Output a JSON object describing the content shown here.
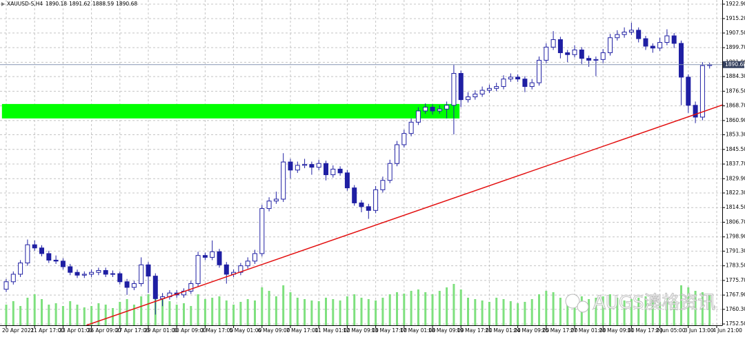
{
  "chart_data": {
    "type": "candlestick",
    "symbol": "XAUUSD-S,H4",
    "up_color": "#ffffff",
    "down_color": "#1f1fa3",
    "outline_color": "#1f1fa3",
    "volume_color": "#7ee07e",
    "grid": true,
    "ylim": [
      1751.8,
      1925.1
    ],
    "yticks": [
      {
        "value": 1922.9,
        "label": "1922.90"
      },
      {
        "value": 1915.2,
        "label": "1915.20"
      },
      {
        "value": 1907.5,
        "label": "1907.50"
      },
      {
        "value": 1899.7,
        "label": "1899.70"
      },
      {
        "value": 1891.9,
        "label": "1891.90"
      },
      {
        "value": 1884.3,
        "label": "1884.30"
      },
      {
        "value": 1876.5,
        "label": "1876.50"
      },
      {
        "value": 1868.7,
        "label": "1868.70"
      },
      {
        "value": 1860.9,
        "label": "1860.90"
      },
      {
        "value": 1853.3,
        "label": "1853.30"
      },
      {
        "value": 1845.5,
        "label": "1845.50"
      },
      {
        "value": 1837.7,
        "label": "1837.70"
      },
      {
        "value": 1829.9,
        "label": "1829.90"
      },
      {
        "value": 1822.3,
        "label": "1822.30"
      },
      {
        "value": 1814.5,
        "label": "1814.50"
      },
      {
        "value": 1806.7,
        "label": "1806.70"
      },
      {
        "value": 1798.9,
        "label": "1798.90"
      },
      {
        "value": 1791.3,
        "label": "1791.30"
      },
      {
        "value": 1783.5,
        "label": "1783.50"
      },
      {
        "value": 1775.7,
        "label": "1775.70"
      },
      {
        "value": 1767.9,
        "label": "1767.90"
      },
      {
        "value": 1760.3,
        "label": "1760.30"
      },
      {
        "value": 1752.5,
        "label": "1752.50"
      }
    ],
    "xlabels": [
      "20 Apr 2021",
      "21 Apr 17:00",
      "23 Apr 01:00",
      "26 Apr 09:00",
      "27 Apr 17:00",
      "29 Apr 01:00",
      "30 Apr 09:00",
      "3 May 17:00",
      "5 May 01:00",
      "6 May 09:00",
      "7 May 17:00",
      "11 May 01:00",
      "12 May 09:00",
      "13 May 17:00",
      "17 May 01:00",
      "18 May 09:00",
      "19 May 17:00",
      "21 May 01:00",
      "24 May 09:00",
      "25 May 17:00",
      "27 May 01:00",
      "28 May 09:00",
      "31 May 17:00",
      "2 Jun 05:00",
      "3 Jun 13:00",
      "4 Jun 21:00"
    ],
    "candles": [
      [
        1771,
        1776.5,
        1769.5,
        1775
      ],
      [
        1775,
        1780.5,
        1773.5,
        1779
      ],
      [
        1779,
        1786.5,
        1777.5,
        1785
      ],
      [
        1785,
        1797.5,
        1783.5,
        1794.7
      ],
      [
        1794.7,
        1797,
        1791.5,
        1793
      ],
      [
        1793,
        1794.5,
        1788.5,
        1790
      ],
      [
        1790,
        1791.5,
        1785,
        1786.5
      ],
      [
        1786.5,
        1789,
        1784.5,
        1786
      ],
      [
        1786,
        1787.5,
        1781.5,
        1783
      ],
      [
        1783,
        1784.5,
        1778.5,
        1780
      ],
      [
        1780,
        1781.5,
        1777,
        1778.5
      ],
      [
        1778.5,
        1780.5,
        1777,
        1779
      ],
      [
        1779,
        1781.5,
        1777.5,
        1780
      ],
      [
        1780,
        1782.5,
        1778.5,
        1781
      ],
      [
        1781,
        1782.5,
        1777.5,
        1779
      ],
      [
        1779,
        1781,
        1777.5,
        1779.3
      ],
      [
        1779.3,
        1780.5,
        1773.5,
        1775
      ],
      [
        1775,
        1776.5,
        1768,
        1772
      ],
      [
        1772,
        1775.5,
        1770.5,
        1774
      ],
      [
        1774,
        1788,
        1772.5,
        1784
      ],
      [
        1784,
        1785.5,
        1769,
        1778
      ],
      [
        1778,
        1779.5,
        1757.5,
        1766
      ],
      [
        1766,
        1769,
        1762,
        1767
      ],
      [
        1767,
        1770.5,
        1765.5,
        1769
      ],
      [
        1769,
        1770.5,
        1766.5,
        1768
      ],
      [
        1768,
        1771.5,
        1766.5,
        1770
      ],
      [
        1770,
        1775.5,
        1768.5,
        1774
      ],
      [
        1774,
        1791,
        1772.5,
        1789
      ],
      [
        1789,
        1790.5,
        1786.5,
        1788
      ],
      [
        1788,
        1797,
        1786.5,
        1791
      ],
      [
        1791,
        1792.5,
        1782.5,
        1784
      ],
      [
        1784,
        1785.5,
        1774,
        1779
      ],
      [
        1779,
        1781.5,
        1777.5,
        1780
      ],
      [
        1780,
        1785,
        1778.5,
        1783.5
      ],
      [
        1783.5,
        1788,
        1782,
        1786
      ],
      [
        1786,
        1792,
        1784.5,
        1790
      ],
      [
        1790,
        1816,
        1788.5,
        1814
      ],
      [
        1814,
        1820,
        1812.5,
        1818
      ],
      [
        1818,
        1823,
        1816.5,
        1819
      ],
      [
        1819,
        1843.5,
        1817.5,
        1838.8
      ],
      [
        1838.8,
        1840.5,
        1830,
        1834.5
      ],
      [
        1834.5,
        1839,
        1833,
        1837
      ],
      [
        1837,
        1840.5,
        1835.5,
        1837.5
      ],
      [
        1837.5,
        1839,
        1832,
        1836
      ],
      [
        1836,
        1840,
        1834.5,
        1838
      ],
      [
        1838,
        1839.5,
        1829,
        1832
      ],
      [
        1832,
        1837,
        1830.5,
        1835
      ],
      [
        1835,
        1836.5,
        1831.5,
        1833
      ],
      [
        1833,
        1834.5,
        1823.5,
        1825
      ],
      [
        1825,
        1826.5,
        1815.5,
        1817
      ],
      [
        1817,
        1818.5,
        1812,
        1815
      ],
      [
        1815,
        1816.5,
        1808.5,
        1813
      ],
      [
        1813,
        1826,
        1811.5,
        1824
      ],
      [
        1824,
        1831,
        1822.5,
        1829
      ],
      [
        1829,
        1840,
        1827.5,
        1838
      ],
      [
        1838,
        1850,
        1836.5,
        1848
      ],
      [
        1848,
        1856,
        1846.5,
        1854
      ],
      [
        1854,
        1862,
        1852.5,
        1860
      ],
      [
        1860,
        1868,
        1858.5,
        1866
      ],
      [
        1866,
        1870,
        1864.5,
        1868
      ],
      [
        1868,
        1869.5,
        1864,
        1866
      ],
      [
        1866,
        1869,
        1864.5,
        1867
      ],
      [
        1867,
        1871,
        1862,
        1869
      ],
      [
        1869,
        1890.5,
        1853.5,
        1886
      ],
      [
        1886,
        1887.5,
        1868,
        1872
      ],
      [
        1872,
        1876,
        1870.5,
        1873.5
      ],
      [
        1873.5,
        1877,
        1872,
        1875
      ],
      [
        1875,
        1879,
        1873.5,
        1877
      ],
      [
        1877,
        1880,
        1875.5,
        1878
      ],
      [
        1878,
        1881,
        1876.5,
        1879
      ],
      [
        1879,
        1885,
        1877.5,
        1883
      ],
      [
        1883,
        1886,
        1881.5,
        1884
      ],
      [
        1884,
        1885.5,
        1881.5,
        1883
      ],
      [
        1883,
        1884.5,
        1876,
        1879
      ],
      [
        1879,
        1883,
        1877.5,
        1881
      ],
      [
        1881,
        1895,
        1879.5,
        1893
      ],
      [
        1893,
        1902,
        1891.5,
        1900
      ],
      [
        1900,
        1908.5,
        1898.5,
        1904
      ],
      [
        1904,
        1905.5,
        1894,
        1897
      ],
      [
        1897,
        1898.5,
        1892,
        1896
      ],
      [
        1896,
        1901,
        1894.5,
        1898.5
      ],
      [
        1898.5,
        1900,
        1891,
        1894
      ],
      [
        1894,
        1895.5,
        1889.5,
        1893
      ],
      [
        1893,
        1895,
        1884.5,
        1893.4
      ],
      [
        1893.4,
        1899,
        1891.5,
        1897
      ],
      [
        1897,
        1907,
        1895.5,
        1905
      ],
      [
        1905,
        1909,
        1903.5,
        1906.7
      ],
      [
        1906.7,
        1910.5,
        1905,
        1908
      ],
      [
        1908,
        1913,
        1906.5,
        1909
      ],
      [
        1909,
        1910.5,
        1902.5,
        1904.5
      ],
      [
        1904.5,
        1906,
        1898.5,
        1900.5
      ],
      [
        1900.5,
        1902,
        1897,
        1899.5
      ],
      [
        1899.5,
        1905,
        1898,
        1902.5
      ],
      [
        1902.5,
        1909.5,
        1901,
        1906
      ],
      [
        1906,
        1907.5,
        1899.5,
        1902
      ],
      [
        1902,
        1903.5,
        1869,
        1884
      ],
      [
        1884,
        1885.5,
        1865,
        1869
      ],
      [
        1869,
        1871,
        1859.5,
        1862.7
      ],
      [
        1862.7,
        1892,
        1861,
        1890.18
      ],
      [
        1890.18,
        1891.62,
        1888.59,
        1890.68
      ]
    ],
    "volume": [
      30,
      35,
      28,
      40,
      45,
      38,
      30,
      32,
      28,
      35,
      30,
      26,
      28,
      32,
      30,
      25,
      34,
      38,
      30,
      42,
      45,
      50,
      40,
      35,
      30,
      32,
      28,
      45,
      38,
      40,
      42,
      36,
      30,
      34,
      38,
      36,
      55,
      50,
      42,
      58,
      48,
      40,
      38,
      36,
      35,
      40,
      38,
      36,
      42,
      45,
      40,
      38,
      36,
      40,
      45,
      48,
      46,
      50,
      52,
      48,
      45,
      50,
      55,
      60,
      52,
      40,
      38,
      36,
      34,
      40,
      38,
      35,
      32,
      34,
      38,
      45,
      50,
      48,
      40,
      38,
      36,
      42,
      38,
      40,
      42,
      45,
      40,
      36,
      38,
      40,
      42,
      36,
      34,
      40,
      38,
      58,
      55,
      50,
      48,
      45
    ],
    "zone": {
      "color": "#00ff00",
      "x": [
        -0.6,
        63.8
      ],
      "y": [
        1862.0,
        1869.7
      ]
    },
    "trendline": {
      "color": "#e31010",
      "x": [
        11.3,
        100.9
      ],
      "y": [
        1751.8,
        1869.3
      ]
    },
    "price_line": {
      "value": 1890.68,
      "color": "#8494b4"
    },
    "watermark": "AUGS澳格资讯"
  }
}
